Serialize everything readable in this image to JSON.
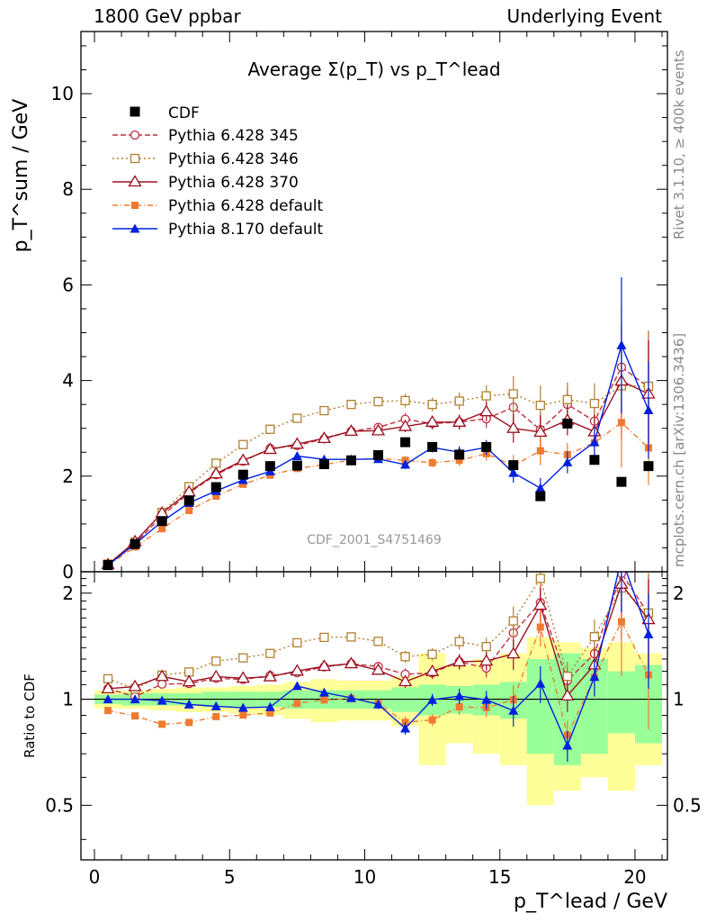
{
  "header": {
    "left": "1800 GeV ppbar",
    "right": "Underlying Event"
  },
  "side_labels": {
    "rivet": "Rivet 3.1.10, ≥ 400k events",
    "mcplots": "mcplots.cern.ch [arXiv:1306.3436]"
  },
  "chart_data": {
    "type": "line",
    "title": "Average Σ(p_T) vs p_T^lead",
    "watermark": "CDF_2001_S4751469",
    "xlabel": "p_T^lead / GeV",
    "ylabel": "p_T^sum / GeV",
    "ratio_ylabel": "Ratio to CDF",
    "xlim": [
      -0.5,
      21.2
    ],
    "ylim": [
      0,
      11.3
    ],
    "ratio_ylim": [
      0.35,
      2.3
    ],
    "x_ticks": [
      0,
      5,
      10,
      15,
      20
    ],
    "y_ticks": [
      0,
      2,
      4,
      6,
      8,
      10
    ],
    "ratio_ticks": [
      0.5,
      1,
      2
    ],
    "x": [
      0.5,
      1.5,
      2.5,
      3.5,
      4.5,
      5.5,
      6.5,
      7.5,
      8.5,
      9.5,
      10.5,
      11.5,
      12.5,
      13.5,
      14.5,
      15.5,
      16.5,
      17.5,
      18.5,
      19.5,
      20.5
    ],
    "data_series": {
      "name": "CDF",
      "values": [
        0.14,
        0.58,
        1.06,
        1.49,
        1.77,
        2.03,
        2.21,
        2.22,
        2.25,
        2.33,
        2.44,
        2.71,
        2.61,
        2.45,
        2.61,
        2.23,
        1.58,
        3.1,
        2.34,
        1.88,
        2.21
      ]
    },
    "series": [
      {
        "name": "Pythia 6.428 345",
        "color": "#c03040",
        "dash": "6,3",
        "marker": "circle-open",
        "values": [
          0.15,
          0.59,
          1.17,
          1.65,
          2.03,
          2.31,
          2.58,
          2.64,
          2.78,
          2.94,
          3.02,
          3.19,
          3.1,
          3.13,
          3.2,
          3.44,
          2.97,
          3.5,
          3.15,
          4.28,
          3.86
        ]
      },
      {
        "name": "Pythia 6.428 346",
        "color": "#b08030",
        "dash": "2,3",
        "marker": "square-open",
        "values": [
          0.16,
          0.62,
          1.24,
          1.78,
          2.27,
          2.66,
          2.98,
          3.21,
          3.37,
          3.5,
          3.56,
          3.58,
          3.5,
          3.57,
          3.68,
          3.72,
          3.48,
          3.6,
          3.52,
          3.89,
          3.88
        ]
      },
      {
        "name": "Pythia 6.428 370",
        "color": "#9a1020",
        "dash": "",
        "marker": "triangle-open",
        "values": [
          0.15,
          0.63,
          1.23,
          1.67,
          2.05,
          2.33,
          2.56,
          2.67,
          2.79,
          2.94,
          2.95,
          3.04,
          3.13,
          3.13,
          3.35,
          3.0,
          2.92,
          3.17,
          2.93,
          3.99,
          3.72
        ]
      },
      {
        "name": "Pythia 6.428 default",
        "color": "#f07a30",
        "dash": "6,3,1,3",
        "marker": "square-filled",
        "values": [
          0.13,
          0.52,
          0.9,
          1.28,
          1.58,
          1.83,
          2.02,
          2.16,
          2.24,
          2.34,
          2.37,
          2.33,
          2.28,
          2.33,
          2.47,
          2.22,
          2.53,
          2.45,
          2.7,
          3.12,
          2.59
        ]
      },
      {
        "name": "Pythia 8.170 default",
        "color": "#0020e0",
        "dash": "",
        "marker": "triangle-filled",
        "values": [
          0.14,
          0.58,
          1.05,
          1.44,
          1.69,
          1.92,
          2.1,
          2.42,
          2.35,
          2.35,
          2.36,
          2.24,
          2.6,
          2.5,
          2.6,
          2.07,
          1.75,
          2.29,
          2.71,
          4.74,
          3.38
        ]
      }
    ],
    "legend_position": "top-left"
  }
}
